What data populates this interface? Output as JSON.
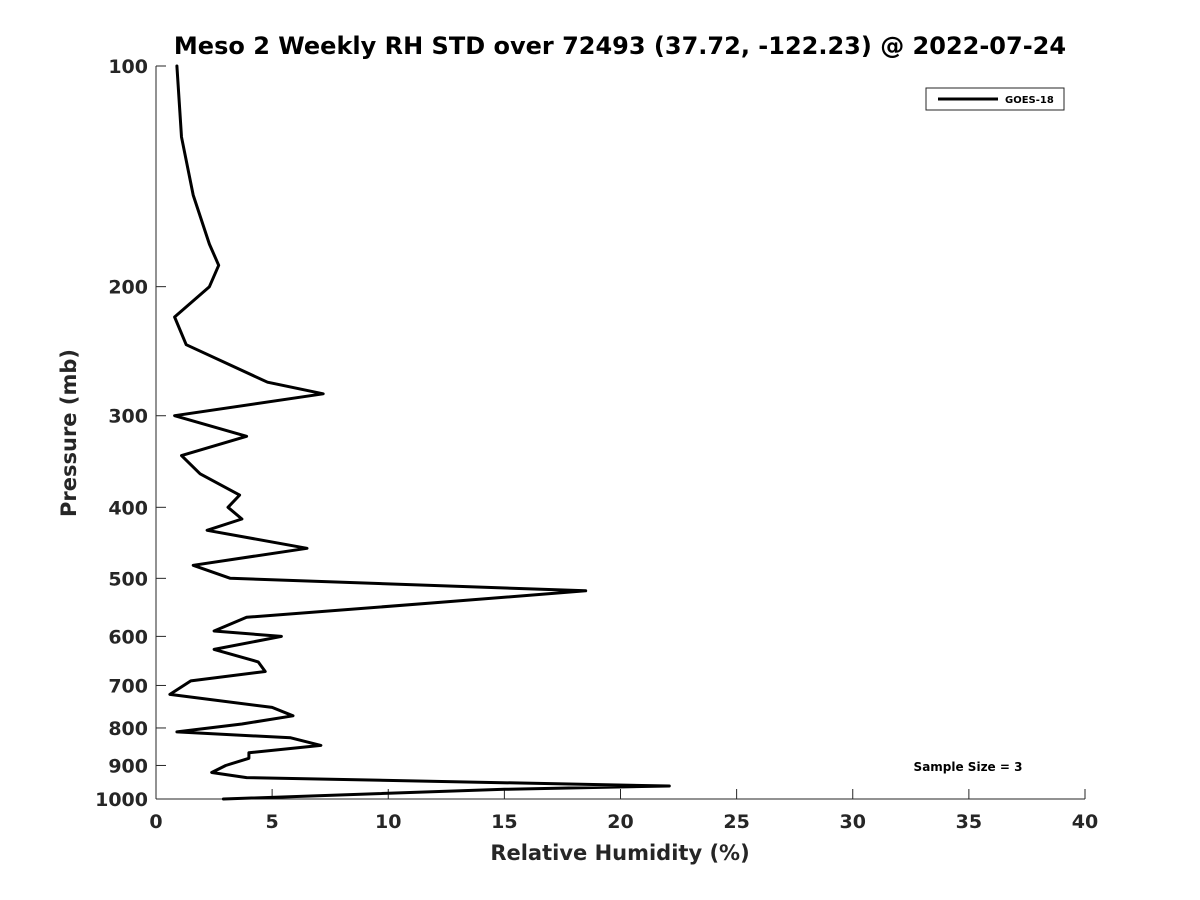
{
  "chart_data": {
    "type": "line",
    "title": "Meso 2 Weekly RH STD over 72493 (37.72, -122.23) @ 2022-07-24",
    "xlabel": "Relative Humidity (%)",
    "ylabel": "Pressure (mb)",
    "xlim": [
      0,
      40
    ],
    "ylim": [
      100,
      1000
    ],
    "y_scale": "log",
    "y_reversed": true,
    "grid": false,
    "legend_position": "top-right",
    "x_ticks": [
      0,
      5,
      10,
      15,
      20,
      25,
      30,
      35,
      40
    ],
    "y_ticks": [
      100,
      200,
      300,
      400,
      500,
      600,
      700,
      800,
      900,
      1000
    ],
    "annotation": "Sample Size = 3",
    "series": [
      {
        "name": "GOES-18",
        "color": "#000000",
        "points": [
          [
            0.9,
            100
          ],
          [
            1.1,
            125
          ],
          [
            1.6,
            150
          ],
          [
            2.3,
            175
          ],
          [
            2.7,
            187
          ],
          [
            2.3,
            200
          ],
          [
            0.8,
            220
          ],
          [
            1.3,
            240
          ],
          [
            4.8,
            270
          ],
          [
            7.2,
            280
          ],
          [
            0.8,
            300
          ],
          [
            3.9,
            320
          ],
          [
            1.1,
            340
          ],
          [
            1.9,
            360
          ],
          [
            3.6,
            385
          ],
          [
            3.1,
            400
          ],
          [
            3.7,
            415
          ],
          [
            2.2,
            430
          ],
          [
            6.5,
            455
          ],
          [
            1.6,
            480
          ],
          [
            3.2,
            500
          ],
          [
            18.5,
            520
          ],
          [
            12.0,
            540
          ],
          [
            3.9,
            565
          ],
          [
            2.5,
            590
          ],
          [
            5.4,
            600
          ],
          [
            2.5,
            625
          ],
          [
            4.4,
            650
          ],
          [
            4.7,
            670
          ],
          [
            1.5,
            690
          ],
          [
            0.6,
            720
          ],
          [
            5.0,
            750
          ],
          [
            5.9,
            770
          ],
          [
            3.7,
            790
          ],
          [
            0.9,
            810
          ],
          [
            5.8,
            825
          ],
          [
            7.1,
            845
          ],
          [
            4.0,
            865
          ],
          [
            4.0,
            880
          ],
          [
            3.0,
            900
          ],
          [
            2.4,
            920
          ],
          [
            3.9,
            935
          ],
          [
            22.1,
            960
          ],
          [
            15.0,
            970
          ],
          [
            2.9,
            1000
          ]
        ]
      }
    ]
  }
}
